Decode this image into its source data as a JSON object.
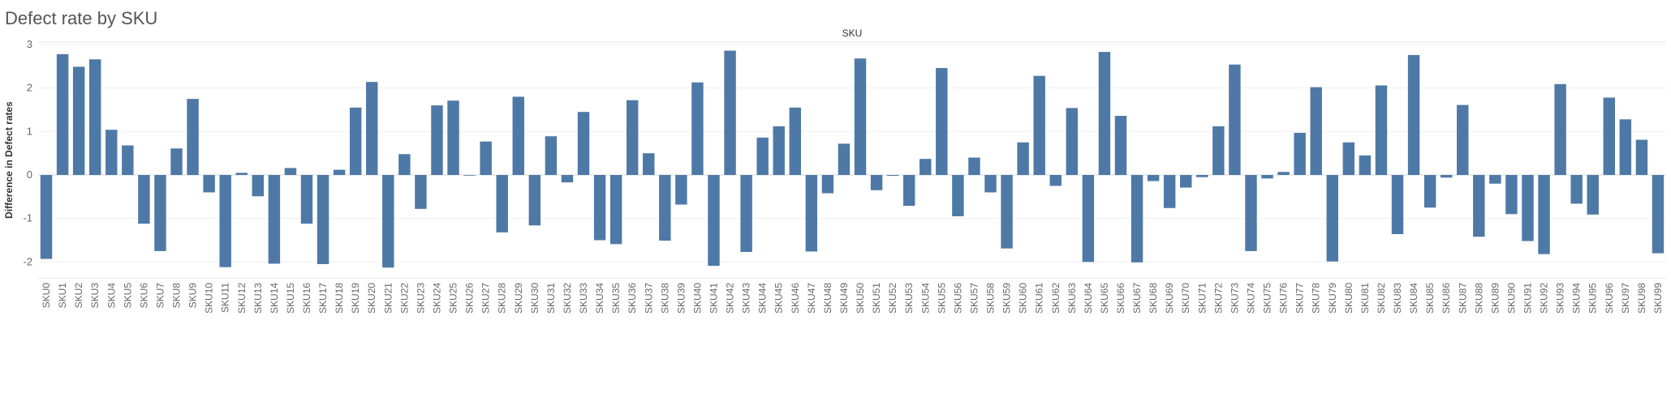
{
  "title": "Defect rate by SKU",
  "chart_data": {
    "type": "bar",
    "title": "Defect rate by SKU",
    "column_header": "SKU",
    "xlabel": "",
    "ylabel": "Difference in Defect rates",
    "ylim": [
      -2.3,
      3.1
    ],
    "yticks": [
      -2,
      -1,
      0,
      1,
      2,
      3
    ],
    "grid": true,
    "bar_color": "#4e79a7",
    "categories": [
      "SKU0",
      "SKU1",
      "SKU2",
      "SKU3",
      "SKU4",
      "SKU5",
      "SKU6",
      "SKU7",
      "SKU8",
      "SKU9",
      "SKU10",
      "SKU11",
      "SKU12",
      "SKU13",
      "SKU14",
      "SKU15",
      "SKU16",
      "SKU17",
      "SKU18",
      "SKU19",
      "SKU20",
      "SKU21",
      "SKU22",
      "SKU23",
      "SKU24",
      "SKU25",
      "SKU26",
      "SKU27",
      "SKU28",
      "SKU29",
      "SKU30",
      "SKU31",
      "SKU32",
      "SKU33",
      "SKU34",
      "SKU35",
      "SKU36",
      "SKU37",
      "SKU38",
      "SKU39",
      "SKU40",
      "SKU41",
      "SKU42",
      "SKU43",
      "SKU44",
      "SKU45",
      "SKU46",
      "SKU47",
      "SKU48",
      "SKU49",
      "SKU50",
      "SKU51",
      "SKU52",
      "SKU53",
      "SKU54",
      "SKU55",
      "SKU56",
      "SKU57",
      "SKU58",
      "SKU59",
      "SKU60",
      "SKU61",
      "SKU62",
      "SKU63",
      "SKU64",
      "SKU65",
      "SKU66",
      "SKU67",
      "SKU68",
      "SKU69",
      "SKU70",
      "SKU71",
      "SKU72",
      "SKU73",
      "SKU74",
      "SKU75",
      "SKU76",
      "SKU77",
      "SKU78",
      "SKU79",
      "SKU80",
      "SKU81",
      "SKU82",
      "SKU83",
      "SKU84",
      "SKU85",
      "SKU86",
      "SKU87",
      "SKU88",
      "SKU89",
      "SKU90",
      "SKU91",
      "SKU92",
      "SKU93",
      "SKU94",
      "SKU95",
      "SKU96",
      "SKU97",
      "SKU98",
      "SKU99"
    ],
    "values": [
      -1.93,
      2.78,
      2.49,
      2.66,
      1.04,
      0.68,
      -1.12,
      -1.75,
      0.61,
      1.75,
      -0.4,
      -2.12,
      0.05,
      -0.49,
      -2.04,
      0.16,
      -1.12,
      -2.05,
      0.12,
      1.55,
      2.14,
      -2.13,
      0.48,
      -0.78,
      1.6,
      1.71,
      -0.01,
      0.77,
      -1.32,
      1.8,
      -1.16,
      0.89,
      -0.17,
      1.45,
      -1.5,
      -1.59,
      1.72,
      0.5,
      -1.51,
      -0.68,
      2.13,
      -2.09,
      2.86,
      -1.77,
      0.86,
      1.12,
      1.55,
      -1.76,
      -0.42,
      0.72,
      2.68,
      -0.35,
      -0.02,
      -0.71,
      0.37,
      2.46,
      -0.95,
      0.4,
      -0.4,
      -1.69,
      0.75,
      2.28,
      -0.25,
      1.54,
      -2.0,
      2.83,
      1.36,
      -2.01,
      -0.14,
      -0.76,
      -0.29,
      -0.05,
      1.12,
      2.54,
      -1.75,
      -0.08,
      0.07,
      0.97,
      2.02,
      -1.99,
      0.75,
      0.45,
      2.06,
      -1.36,
      2.76,
      -0.75,
      -0.06,
      1.61,
      -1.42,
      -0.2,
      -0.9,
      -1.52,
      -1.82,
      2.09,
      -0.66,
      -0.91,
      1.78,
      1.28,
      0.81,
      -1.8
    ]
  }
}
